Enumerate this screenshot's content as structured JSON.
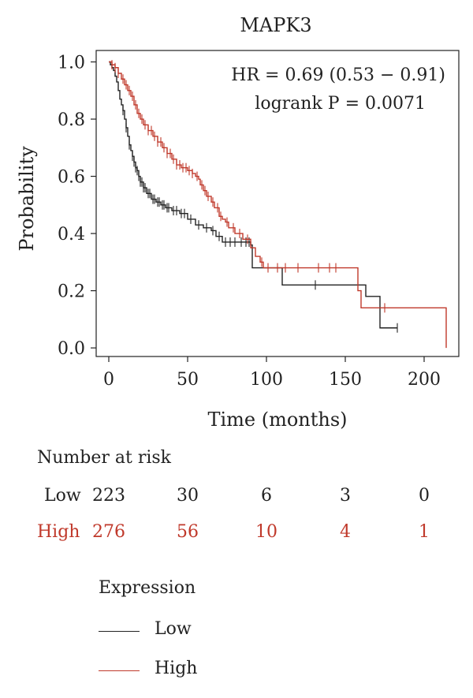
{
  "chart_data": {
    "type": "line",
    "title": "MAPK3",
    "xlabel": "Time (months)",
    "ylabel": "Probability",
    "xlim": [
      -8,
      222
    ],
    "ylim": [
      -0.03,
      1.04
    ],
    "xticks": [
      0,
      50,
      100,
      150,
      200
    ],
    "yticks": [
      "0.0",
      "0.2",
      "0.4",
      "0.6",
      "0.8",
      "1.0"
    ],
    "annotations": [
      "HR = 0.69 (0.53 − 0.91)",
      "logrank P = 0.0071"
    ],
    "series": [
      {
        "name": "Low",
        "color": "#222222",
        "steps": [
          [
            0,
            1.0
          ],
          [
            1,
            0.99
          ],
          [
            2,
            0.98
          ],
          [
            3,
            0.97
          ],
          [
            4,
            0.95
          ],
          [
            5,
            0.93
          ],
          [
            6,
            0.9
          ],
          [
            7,
            0.87
          ],
          [
            8,
            0.85
          ],
          [
            9,
            0.83
          ],
          [
            10,
            0.8
          ],
          [
            11,
            0.77
          ],
          [
            12,
            0.74
          ],
          [
            13,
            0.71
          ],
          [
            14,
            0.69
          ],
          [
            15,
            0.67
          ],
          [
            16,
            0.65
          ],
          [
            17,
            0.63
          ],
          [
            18,
            0.62
          ],
          [
            19,
            0.6
          ],
          [
            20,
            0.58
          ],
          [
            22,
            0.56
          ],
          [
            24,
            0.54
          ],
          [
            27,
            0.52
          ],
          [
            30,
            0.51
          ],
          [
            33,
            0.5
          ],
          [
            36,
            0.49
          ],
          [
            40,
            0.48
          ],
          [
            45,
            0.47
          ],
          [
            50,
            0.45
          ],
          [
            55,
            0.43
          ],
          [
            60,
            0.42
          ],
          [
            65,
            0.41
          ],
          [
            68,
            0.39
          ],
          [
            72,
            0.37
          ],
          [
            80,
            0.37
          ],
          [
            90,
            0.36
          ],
          [
            91,
            0.28
          ],
          [
            110,
            0.22
          ],
          [
            160,
            0.22
          ],
          [
            163,
            0.18
          ],
          [
            172,
            0.07
          ],
          [
            183,
            0.07
          ]
        ],
        "censor_x": [
          9,
          11,
          13,
          15,
          16,
          17,
          18,
          19,
          20,
          21,
          22,
          23,
          25,
          26,
          28,
          29,
          31,
          32,
          34,
          35,
          37,
          38,
          41,
          43,
          46,
          48,
          52,
          57,
          62,
          66,
          70,
          74,
          77,
          80,
          84,
          87,
          89,
          131,
          183
        ]
      },
      {
        "name": "High",
        "color": "#c0392b",
        "steps": [
          [
            0,
            1.0
          ],
          [
            2,
            0.99
          ],
          [
            4,
            0.98
          ],
          [
            6,
            0.96
          ],
          [
            8,
            0.94
          ],
          [
            10,
            0.92
          ],
          [
            12,
            0.9
          ],
          [
            14,
            0.88
          ],
          [
            16,
            0.85
          ],
          [
            18,
            0.82
          ],
          [
            20,
            0.8
          ],
          [
            22,
            0.78
          ],
          [
            25,
            0.76
          ],
          [
            28,
            0.74
          ],
          [
            31,
            0.72
          ],
          [
            34,
            0.7
          ],
          [
            37,
            0.68
          ],
          [
            40,
            0.66
          ],
          [
            43,
            0.64
          ],
          [
            46,
            0.63
          ],
          [
            50,
            0.62
          ],
          [
            53,
            0.61
          ],
          [
            55,
            0.6
          ],
          [
            57,
            0.59
          ],
          [
            58,
            0.57
          ],
          [
            60,
            0.55
          ],
          [
            62,
            0.53
          ],
          [
            65,
            0.51
          ],
          [
            67,
            0.49
          ],
          [
            70,
            0.46
          ],
          [
            72,
            0.45
          ],
          [
            74,
            0.44
          ],
          [
            76,
            0.42
          ],
          [
            80,
            0.4
          ],
          [
            85,
            0.38
          ],
          [
            90,
            0.35
          ],
          [
            93,
            0.32
          ],
          [
            96,
            0.3
          ],
          [
            98,
            0.28
          ],
          [
            157,
            0.28
          ],
          [
            158,
            0.2
          ],
          [
            160,
            0.14
          ],
          [
            214,
            0.14
          ],
          [
            214,
            0.0
          ]
        ],
        "censor_x": [
          2,
          4,
          6,
          9,
          11,
          13,
          15,
          17,
          19,
          21,
          23,
          25,
          27,
          29,
          31,
          33,
          35,
          37,
          39,
          41,
          43,
          45,
          47,
          49,
          51,
          53,
          56,
          59,
          61,
          63,
          66,
          69,
          71,
          75,
          79,
          83,
          88,
          97,
          101,
          107,
          112,
          120,
          133,
          140,
          144,
          175
        ]
      }
    ],
    "number_at_risk": {
      "title": "Number at risk",
      "times": [
        0,
        50,
        100,
        150,
        200
      ],
      "rows": [
        {
          "label": "Low",
          "color": "#222222",
          "values": [
            "223",
            "30",
            "6",
            "3",
            "0"
          ]
        },
        {
          "label": "High",
          "color": "#c0392b",
          "values": [
            "276",
            "56",
            "10",
            "4",
            "1"
          ]
        }
      ]
    },
    "legend": {
      "title": "Expression",
      "placement": "bottom-left",
      "items": [
        {
          "label": "Low",
          "color": "#222222"
        },
        {
          "label": "High",
          "color": "#c0392b"
        }
      ]
    }
  }
}
